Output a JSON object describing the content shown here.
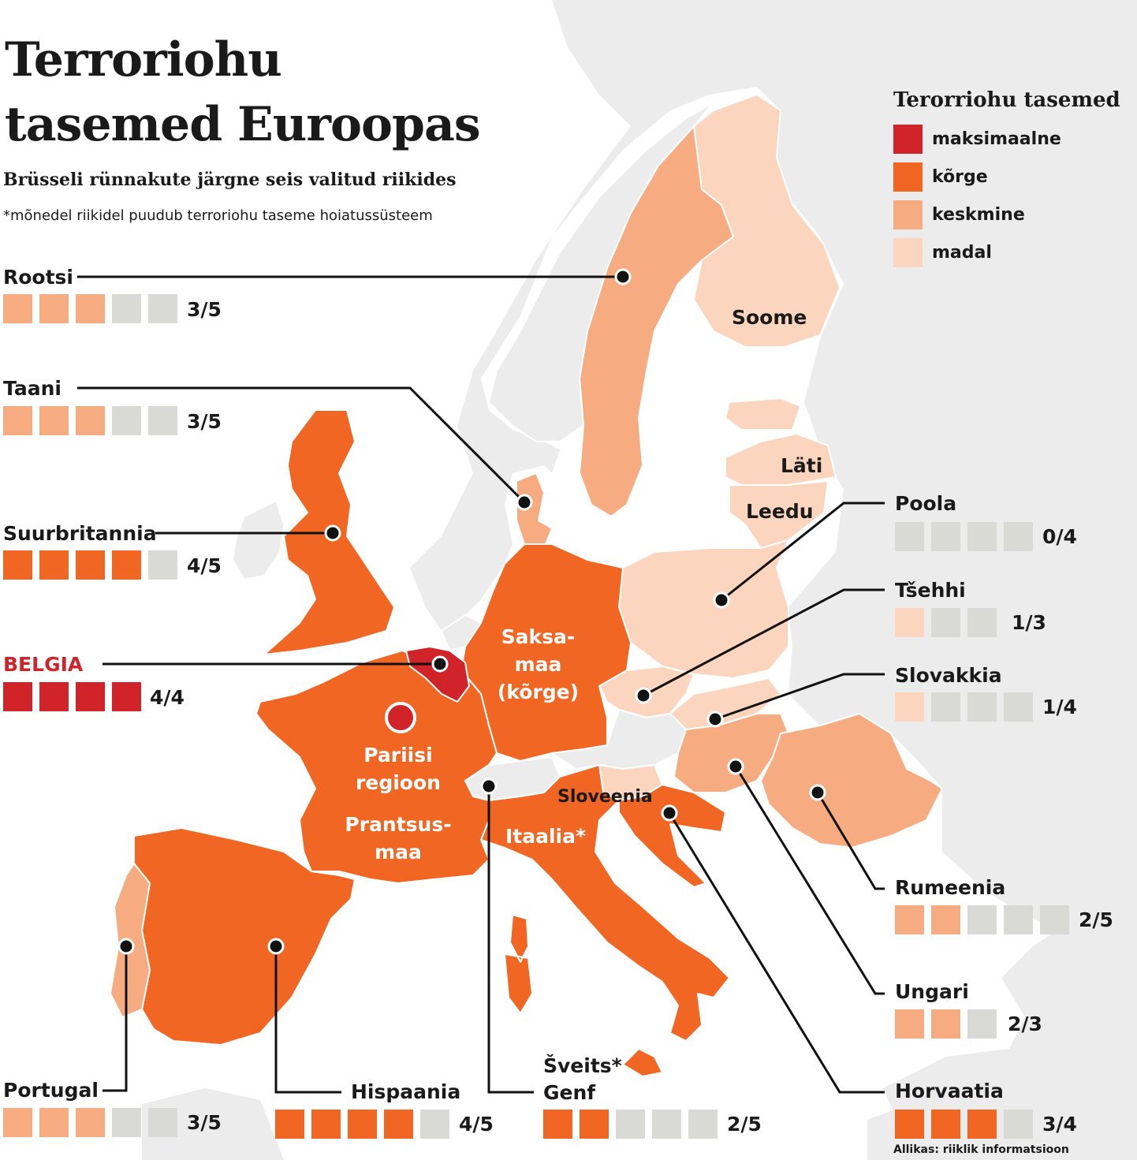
{
  "header": {
    "title_line1": "Terroriohu",
    "title_line2": "tasemed Euroopas",
    "subtitle": "Brüsseli rünnakute järgne seis valitud riikides",
    "note": "*mõnedel riikidel puudub terroriohu taseme hoiatussüsteem"
  },
  "colors": {
    "maksimaalne": "#d1232a",
    "korge": "#f06622",
    "keskmine": "#f6ac80",
    "madal": "#fbd5bd",
    "none": "#d9d9d6",
    "land": "#ececec"
  },
  "legend": {
    "title": "Terorriohu tasemed",
    "items": [
      {
        "label": "maksimaalne",
        "level": "maksimaalne"
      },
      {
        "label": "kõrge",
        "level": "korge"
      },
      {
        "label": "keskmine",
        "level": "keskmine"
      },
      {
        "label": "madal",
        "level": "madal"
      }
    ]
  },
  "countries": [
    {
      "name": "Rootsi",
      "score": "3/5",
      "level": "keskmine",
      "value": 3,
      "total": 5
    },
    {
      "name": "Taani",
      "score": "3/5",
      "level": "keskmine",
      "value": 3,
      "total": 5
    },
    {
      "name": "Suurbritannia",
      "score": "4/5",
      "level": "korge",
      "value": 4,
      "total": 5
    },
    {
      "name": "BELGIA",
      "score": "4/4",
      "level": "maksimaalne",
      "value": 4,
      "total": 4
    },
    {
      "name": "Poola",
      "score": "0/4",
      "level": "none",
      "value": 0,
      "total": 4
    },
    {
      "name": "Tšehhi",
      "score": "1/3",
      "level": "madal",
      "value": 1,
      "total": 3
    },
    {
      "name": "Slovakkia",
      "score": "1/4",
      "level": "madal",
      "value": 1,
      "total": 4
    },
    {
      "name": "Rumeenia",
      "score": "2/5",
      "level": "keskmine",
      "value": 2,
      "total": 5
    },
    {
      "name": "Ungari",
      "score": "2/3",
      "level": "keskmine",
      "value": 2,
      "total": 3
    },
    {
      "name": "Horvaatia",
      "score": "3/4",
      "level": "korge",
      "value": 3,
      "total": 4
    },
    {
      "name": "Portugal",
      "score": "3/5",
      "level": "keskmine",
      "value": 3,
      "total": 5
    },
    {
      "name": "Hispaania",
      "score": "4/5",
      "level": "korge",
      "value": 4,
      "total": 5
    },
    {
      "name": "Šveits*\nGenf",
      "score": "2/5",
      "level": "korge",
      "value": 2,
      "total": 5
    }
  ],
  "map_labels": {
    "soome": "Soome",
    "lati": "Läti",
    "leedu": "Leedu",
    "saksamaa": "Saksa-\nmaa\n(kõrge)",
    "pariis": "Pariisi\nregioon",
    "prantsusmaa": "Prantsus-\nmaa",
    "itaalia": "Itaalia*",
    "sloveenia": "Sloveenia"
  },
  "source": "Allikas: riiklik informatsioon"
}
